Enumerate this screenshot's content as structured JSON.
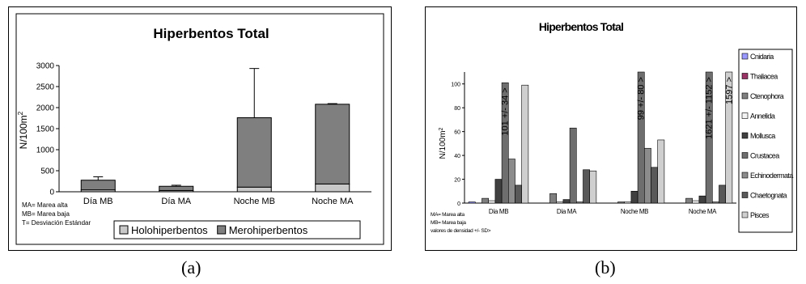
{
  "chart_data": [
    {
      "type": "bar",
      "stacked": true,
      "title": "Hiperbentos Total",
      "ylabel": "N/100m",
      "ylabel_sup": "2",
      "categories": [
        "Día MB",
        "Día MA",
        "Noche MB",
        "Noche MA"
      ],
      "series": [
        {
          "name": "Holohiperbentos",
          "color": "#c8c8c8",
          "values": [
            45,
            30,
            110,
            185
          ]
        },
        {
          "name": "Merohiperbentos",
          "color": "#7f7f7f",
          "values": [
            230,
            100,
            1650,
            1895
          ]
        }
      ],
      "error_upper": [
        355,
        155,
        2930,
        2095
      ],
      "ylim": [
        0,
        3000
      ],
      "yticks": [
        "0",
        "500",
        "1000",
        "1500",
        "2000",
        "2500",
        "3000"
      ],
      "legend_position": "bottom",
      "notes": [
        "MA= Marea alta",
        "MB= Marea baja",
        "T= Desviación Estándar"
      ]
    },
    {
      "type": "bar",
      "title": "Hiperbentos Total",
      "ylabel": "N/100m",
      "ylabel_sup": "2",
      "categories": [
        "Día MB",
        "Día MA",
        "Noche MB",
        "Noche MA"
      ],
      "series": [
        {
          "name": "Cnidaria",
          "color": "#9999ff",
          "values": [
            1,
            0,
            0,
            0
          ]
        },
        {
          "name": "Thaliacea",
          "color": "#993366",
          "values": [
            0,
            0,
            0,
            0
          ]
        },
        {
          "name": "Ctenophora",
          "color": "#7f7f7f",
          "values": [
            4,
            8,
            1,
            4
          ]
        },
        {
          "name": "Annelida",
          "color": "#f2f2f2",
          "values": [
            2,
            1,
            1,
            2
          ]
        },
        {
          "name": "Mollusca",
          "color": "#404040",
          "values": [
            20,
            3,
            10,
            6
          ]
        },
        {
          "name": "Crustacea",
          "color": "#6e6e6e",
          "values": [
            101,
            63,
            110,
            110
          ]
        },
        {
          "name": "Echinodermata",
          "color": "#8c8c8c",
          "values": [
            37,
            1,
            46,
            1
          ]
        },
        {
          "name": "Chaetognata",
          "color": "#595959",
          "values": [
            15,
            28,
            30,
            15
          ]
        },
        {
          "name": "Pisces",
          "color": "#cfcfcf",
          "values": [
            99,
            27,
            53,
            110
          ]
        }
      ],
      "bar_labels": [
        "101 +/- 34 >",
        "99 +/- 80 >",
        "1621 +/- 1152 >",
        "1597 >",
        "460 >"
      ],
      "ylim": [
        0,
        110
      ],
      "yticks": [
        "0",
        "20",
        "40",
        "60",
        "80",
        "100"
      ],
      "legend_position": "right",
      "notes": [
        "MA= Marea alta",
        "MB= Marea baja",
        "valores de densidad +/- SD>"
      ]
    }
  ],
  "captions": [
    "(a)",
    "(b)"
  ]
}
